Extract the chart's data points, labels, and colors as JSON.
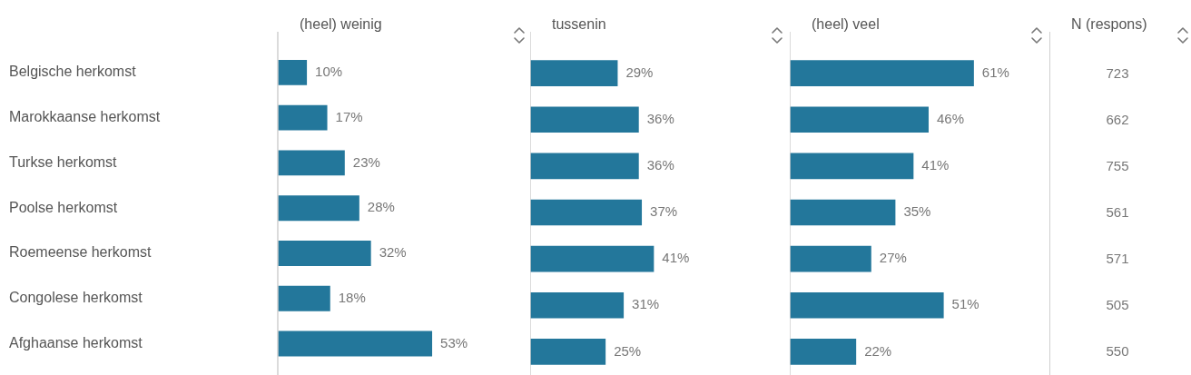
{
  "chart_data": [
    {
      "type": "bar",
      "orientation": "horizontal",
      "title": "(heel) weinig",
      "categories": [
        "Belgische herkomst",
        "Marokkaanse herkomst",
        "Turkse herkomst",
        "Poolse herkomst",
        "Roemeense herkomst",
        "Congolese herkomst",
        "Afghaanse herkomst"
      ],
      "values": [
        10,
        17,
        23,
        28,
        32,
        18,
        53
      ],
      "value_labels": [
        "10%",
        "17%",
        "23%",
        "28%",
        "32%",
        "18%",
        "53%"
      ],
      "color": "#23779b",
      "tick_labels": "y"
    },
    {
      "type": "bar",
      "orientation": "horizontal",
      "title": "tussenin",
      "categories": [
        null,
        null,
        null,
        null,
        null,
        null,
        null
      ],
      "values": [
        29,
        36,
        36,
        37,
        41,
        31,
        25
      ],
      "value_labels": [
        "29%",
        "36%",
        "36%",
        "37%",
        "41%",
        "31%",
        "25%"
      ],
      "color": "#23779b",
      "tick_labels": false
    },
    {
      "type": "bar",
      "orientation": "horizontal",
      "title": "(heel) veel",
      "categories": [
        null,
        null,
        null,
        null,
        null,
        null,
        null
      ],
      "values": [
        61,
        46,
        41,
        35,
        27,
        51,
        22
      ],
      "value_labels": [
        "61%",
        "46%",
        "41%",
        "35%",
        "27%",
        "51%",
        "22%"
      ],
      "color": "#23779b",
      "tick_labels": false
    },
    {
      "type": "other",
      "title": "N (respons)",
      "categories": [
        null,
        null,
        null,
        null,
        null,
        null,
        null
      ],
      "values": [
        723,
        662,
        755,
        561,
        571,
        505,
        550
      ],
      "data_labels": true
    }
  ]
}
